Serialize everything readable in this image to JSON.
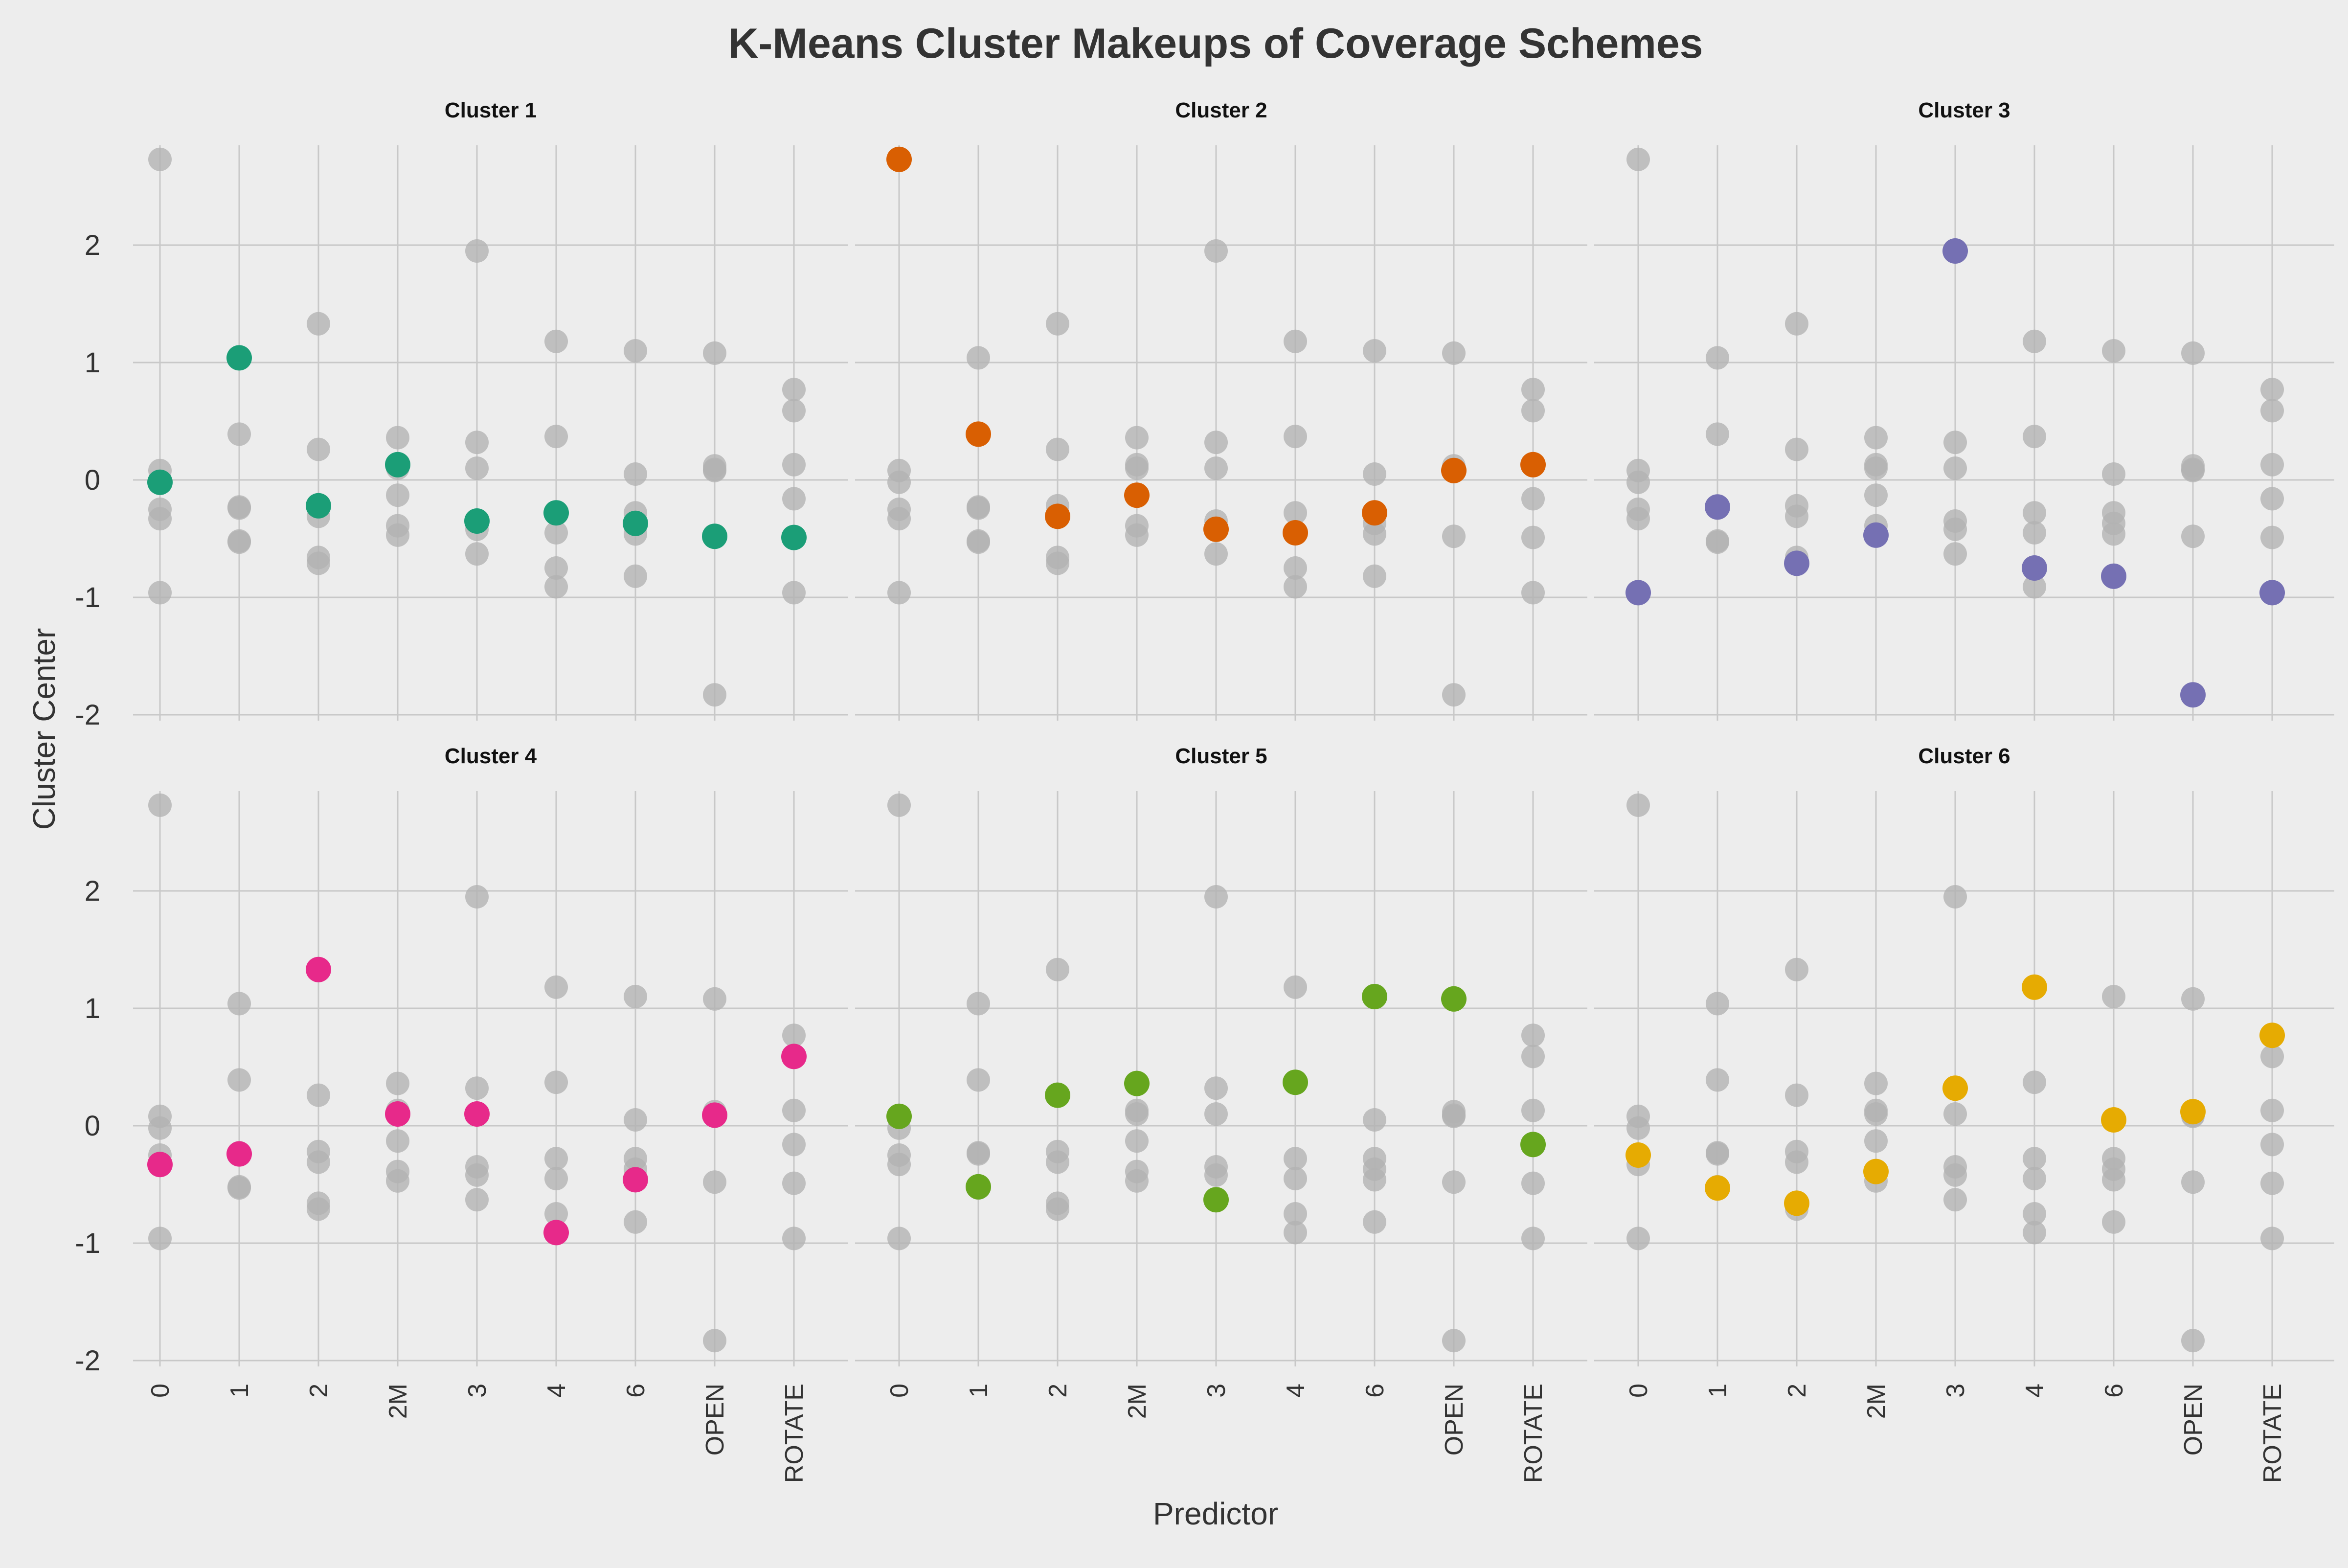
{
  "chart_data": {
    "type": "scatter",
    "title": "K-Means Cluster Makeups of Coverage Schemes",
    "xlabel": "Predictor",
    "ylabel": "Cluster Center",
    "categories": [
      "0",
      "1",
      "2",
      "2M",
      "3",
      "4",
      "6",
      "OPEN",
      "ROTATE"
    ],
    "ylim": [
      -2.05,
      2.85
    ],
    "yticks": [
      -2,
      -1,
      0,
      1,
      2
    ],
    "grid": true,
    "facet_layout": "2 rows x 3 columns",
    "background_color": "#ededed",
    "gridline_color": "#c8c8c8",
    "context_point_color": "#b3b3b3",
    "series": [
      {
        "name": "Cluster 1",
        "color": "#1b9e77",
        "values": [
          -0.02,
          1.04,
          -0.22,
          0.13,
          -0.35,
          -0.28,
          -0.37,
          -0.48,
          -0.49
        ]
      },
      {
        "name": "Cluster 2",
        "color": "#d95f02",
        "values": [
          2.73,
          0.39,
          -0.31,
          -0.13,
          -0.42,
          -0.45,
          -0.28,
          0.08,
          0.13
        ]
      },
      {
        "name": "Cluster 3",
        "color": "#7570b3",
        "values": [
          -0.96,
          -0.23,
          -0.71,
          -0.47,
          1.95,
          -0.75,
          -0.82,
          -1.83,
          -0.96
        ]
      },
      {
        "name": "Cluster 4",
        "color": "#e7298a",
        "values": [
          -0.33,
          -0.24,
          1.33,
          0.1,
          0.1,
          -0.91,
          -0.46,
          0.09,
          0.59
        ]
      },
      {
        "name": "Cluster 5",
        "color": "#66a61e",
        "values": [
          0.08,
          -0.52,
          0.26,
          0.36,
          -0.63,
          0.37,
          1.1,
          1.08,
          -0.16
        ]
      },
      {
        "name": "Cluster 6",
        "color": "#e6ab02",
        "values": [
          -0.25,
          -0.53,
          -0.66,
          -0.39,
          0.32,
          1.18,
          0.05,
          0.12,
          0.77
        ]
      }
    ]
  }
}
